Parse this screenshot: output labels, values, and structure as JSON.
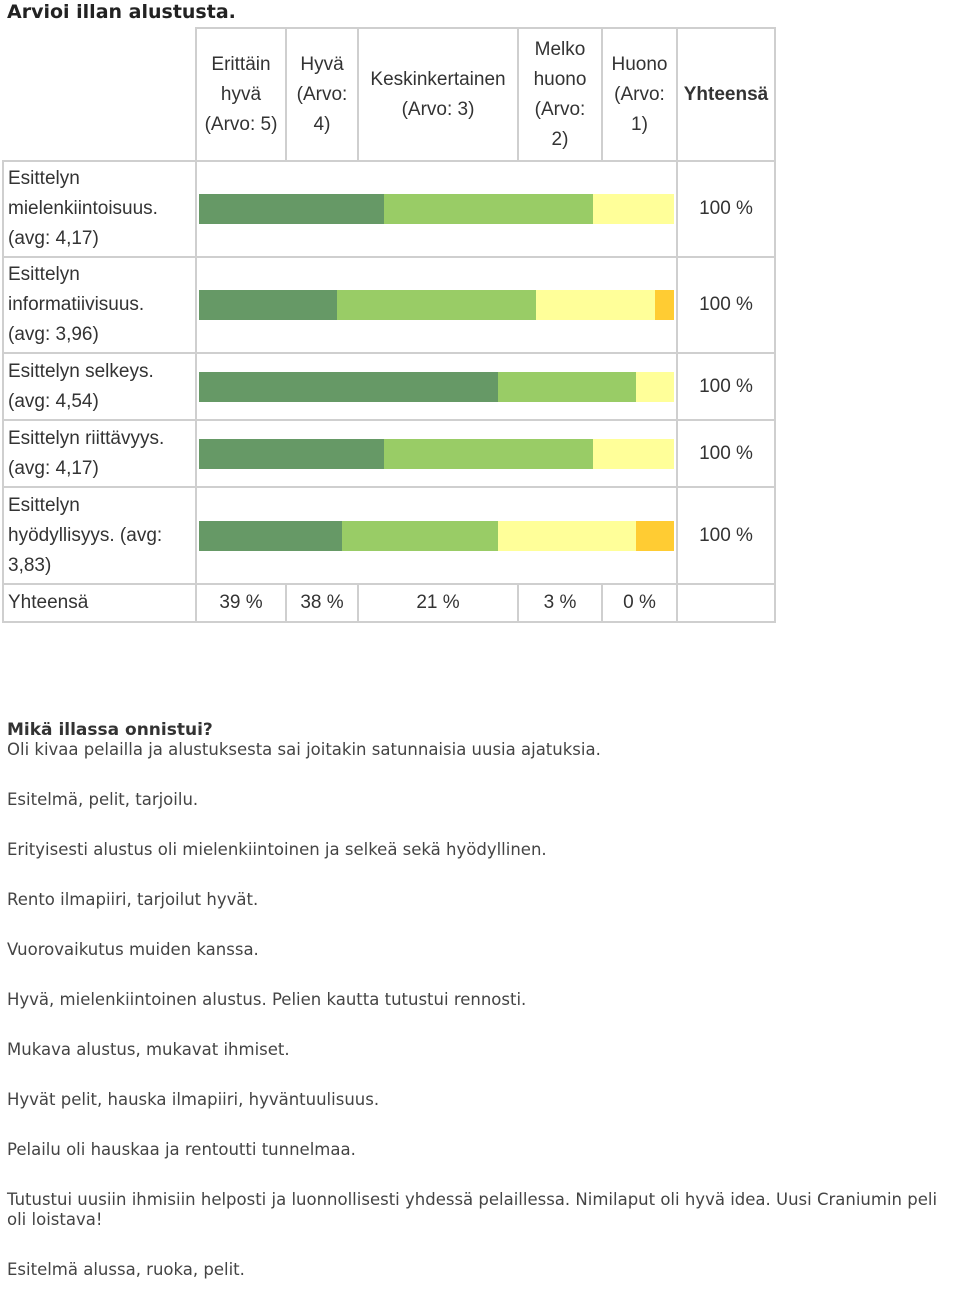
{
  "title": "Arvioi illan alustusta.",
  "columns": [
    {
      "lines": [
        "Erittäin",
        "hyvä",
        "(Arvo: 5)"
      ]
    },
    {
      "lines": [
        "Hyvä",
        "(Arvo:",
        "4)"
      ]
    },
    {
      "lines": [
        "Keskinkertainen",
        "(Arvo: 3)"
      ]
    },
    {
      "lines": [
        "Melko",
        "huono",
        "(Arvo:",
        "2)"
      ]
    },
    {
      "lines": [
        "Huono",
        "(Arvo:",
        "1)"
      ]
    }
  ],
  "total_header": "Yhteensä",
  "colors": {
    "value_5": "#669966",
    "value_4": "#99cc66",
    "value_3": "#ffff99",
    "value_2": "#ffcc33",
    "value_1": "#ff6633"
  },
  "rows": [
    {
      "lines": [
        "Esittelyn",
        "mielenkiintoisuus.",
        "(avg: 4,17)"
      ],
      "total": "100 %",
      "shares": [
        0.39,
        0.44,
        0.17,
        0,
        0
      ]
    },
    {
      "lines": [
        "Esittelyn",
        "informatiivisuus.",
        "(avg: 3,96)"
      ],
      "total": "100 %",
      "shares": [
        0.29,
        0.42,
        0.25,
        0.04,
        0
      ]
    },
    {
      "lines": [
        "Esittelyn selkeys.",
        "(avg: 4,54)"
      ],
      "total": "100 %",
      "shares": [
        0.63,
        0.29,
        0.08,
        0,
        0
      ]
    },
    {
      "lines": [
        "Esittelyn riittävyys.",
        "(avg: 4,17)"
      ],
      "total": "100 %",
      "shares": [
        0.39,
        0.44,
        0.17,
        0,
        0
      ]
    },
    {
      "lines": [
        "Esittelyn",
        "hyödyllisyys. (avg:",
        "3,83)"
      ],
      "total": "100 %",
      "shares": [
        0.3,
        0.33,
        0.29,
        0.08,
        0
      ]
    }
  ],
  "footer": {
    "label": "Yhteensä",
    "values": [
      "39 %",
      "38 %",
      "21 %",
      "3 %",
      "0 %"
    ]
  },
  "question": {
    "heading": "Mikä illassa onnistui?",
    "answers": [
      "Oli kivaa pelailla ja alustuksesta sai joitakin satunnaisia uusia ajatuksia.",
      "Esitelmä, pelit, tarjoilu.",
      "Erityisesti alustus oli mielenkiintoinen ja selkeä sekä hyödyllinen.",
      "Rento ilmapiiri, tarjoilut hyvät.",
      "Vuorovaikutus muiden kanssa.",
      "Hyvä, mielenkiintoinen alustus. Pelien kautta tutustui rennosti.",
      "Mukava alustus, mukavat ihmiset.",
      "Hyvät pelit, hauska ilmapiiri, hyväntuulisuus.",
      "Pelailu oli hauskaa ja rentoutti tunnelmaa.",
      "Tutustui uusiin ihmisiin helposti ja luonnollisesti yhdessä pelaillessa. Nimilaput oli hyvä idea. Uusi Craniumin peli oli loistava!",
      "Esitelmä alussa, ruoka, pelit."
    ]
  }
}
